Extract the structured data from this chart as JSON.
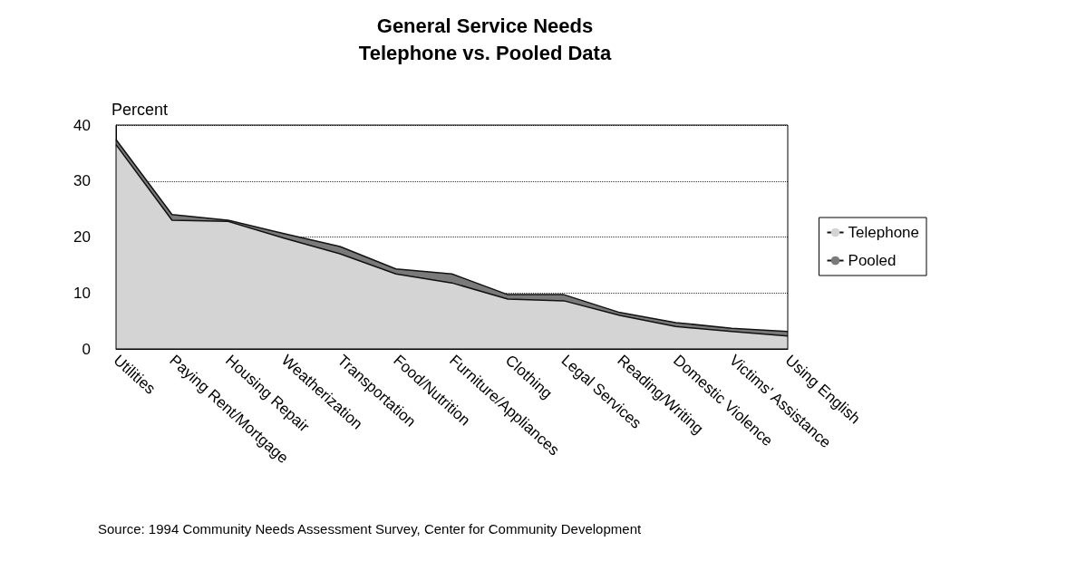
{
  "chart_data": {
    "type": "area",
    "title": "General Service Needs",
    "subtitle": "Telephone vs. Pooled Data",
    "ylabel": "Percent",
    "categories": [
      "Utilities",
      "Paying Rent/Mortgage",
      "Housing Repair",
      "Weatherization",
      "Transportation",
      "Food/Nutrition",
      "Furniture/Appliances",
      "Clothing",
      "Legal Services",
      "Reading/Writing",
      "Domestic Violence",
      "Victims' Assistance",
      "Using English"
    ],
    "series": [
      {
        "name": "Telephone",
        "color": "#d4d4d4",
        "values": [
          36.5,
          23,
          22.8,
          19.8,
          17,
          13.4,
          11.8,
          8.9,
          8.6,
          6,
          4,
          3.1,
          2.3
        ]
      },
      {
        "name": "Pooled",
        "color": "#7a7a7a",
        "values": [
          37.4,
          24,
          23,
          20.6,
          18.3,
          14.3,
          13.4,
          9.7,
          9.7,
          6.5,
          4.7,
          3.7,
          3.1
        ]
      }
    ],
    "ylim": [
      0,
      40
    ],
    "yticks": [
      0,
      10,
      20,
      30,
      40
    ],
    "grid": "y",
    "legend": "right",
    "annotations": [
      "Source: 1994 Community Needs Assessment Survey, Center for Community Development"
    ]
  }
}
